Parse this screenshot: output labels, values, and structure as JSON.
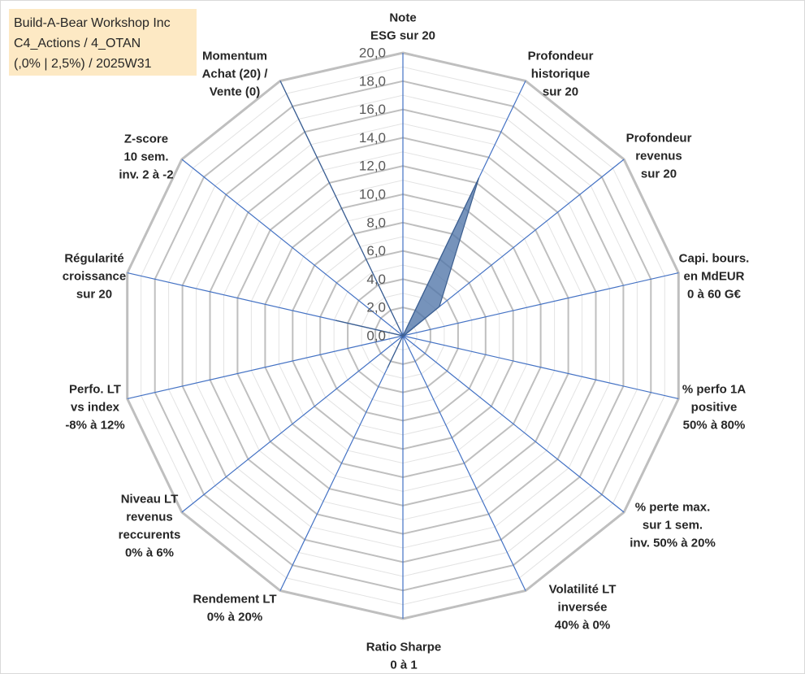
{
  "chart_data": {
    "type": "radar",
    "title_lines": [
      "Build-A-Bear Workshop Inc",
      "C4_Actions / 4_OTAN",
      "(,0% | 2,5%) / 2025W31"
    ],
    "axes": [
      [
        "Note",
        "ESG sur 20"
      ],
      [
        "Profondeur",
        "historique",
        "sur 20"
      ],
      [
        "Profondeur",
        "revenus",
        "sur 20"
      ],
      [
        "Capi. bours.",
        "en MdEUR",
        "0 à 60 G€"
      ],
      [
        "% perfo 1A",
        "positive",
        "50% à 80%"
      ],
      [
        "% perte max.",
        "sur 1 sem.",
        "inv. 50% à 20%"
      ],
      [
        "Volatilité LT",
        "inversée",
        "40% à 0%"
      ],
      [
        "Ratio Sharpe",
        "0 à 1"
      ],
      [
        "Rendement LT",
        "0% à 20%"
      ],
      [
        "Niveau LT",
        "revenus",
        "reccurents",
        "0% à 6%"
      ],
      [
        "Perfo. LT",
        "vs index",
        "-8% à 12%"
      ],
      [
        "Régularité",
        "croissance",
        "sur 20"
      ],
      [
        "Z-score",
        "10 sem.",
        "inv. 2 à -2"
      ],
      [
        "Momentum",
        "Achat (20) /",
        "Vente (0)"
      ]
    ],
    "series": [
      {
        "values": [
          0,
          12.4,
          3.3,
          0.1,
          0,
          0,
          0.1,
          0,
          2.5,
          0,
          0,
          4.9,
          0,
          20.0
        ],
        "color": "#4f74a8"
      }
    ],
    "ticks": [
      "0,0",
      "2,0",
      "4,0",
      "6,0",
      "8,0",
      "10,0",
      "12,0",
      "14,0",
      "16,0",
      "18,0",
      "20,0"
    ],
    "rlim": [
      0,
      20
    ],
    "grid": true,
    "legend": "none"
  }
}
